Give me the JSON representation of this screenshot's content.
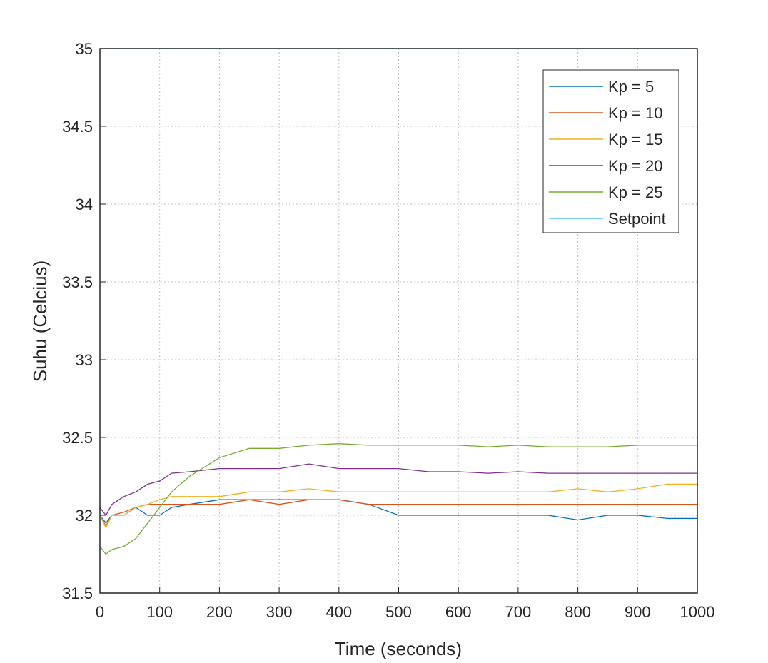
{
  "chart_data": {
    "type": "line",
    "title": "",
    "xlabel": "Time (seconds)",
    "ylabel": "Suhu (Celcius)",
    "xlim": [
      0,
      1000
    ],
    "ylim": [
      31.5,
      35
    ],
    "xticks": [
      "0",
      "100",
      "200",
      "300",
      "400",
      "500",
      "600",
      "700",
      "800",
      "900",
      "1000"
    ],
    "yticks": [
      "31.5",
      "32",
      "32.5",
      "33",
      "33.5",
      "34",
      "34.5",
      "35"
    ],
    "grid": true,
    "legend_position": "top-right",
    "series": [
      {
        "name": "Kp = 5",
        "color": "#0072bd",
        "x": [
          0,
          10,
          20,
          40,
          60,
          80,
          100,
          120,
          150,
          200,
          250,
          300,
          350,
          400,
          450,
          500,
          550,
          600,
          650,
          700,
          750,
          800,
          850,
          900,
          950,
          1000
        ],
        "y": [
          32.0,
          31.95,
          32.0,
          32.0,
          32.05,
          32.0,
          32.0,
          32.05,
          32.07,
          32.1,
          32.1,
          32.1,
          32.1,
          32.1,
          32.07,
          32.0,
          32.0,
          32.0,
          32.0,
          32.0,
          32.0,
          31.97,
          32.0,
          32.0,
          31.98,
          31.98
        ]
      },
      {
        "name": "Kp = 10",
        "color": "#d95319",
        "x": [
          0,
          10,
          20,
          40,
          60,
          80,
          100,
          120,
          150,
          200,
          250,
          300,
          350,
          400,
          450,
          500,
          550,
          600,
          650,
          700,
          750,
          800,
          850,
          900,
          950,
          1000
        ],
        "y": [
          32.0,
          31.93,
          32.0,
          32.02,
          32.05,
          32.07,
          32.07,
          32.07,
          32.07,
          32.07,
          32.1,
          32.07,
          32.1,
          32.1,
          32.07,
          32.07,
          32.07,
          32.07,
          32.07,
          32.07,
          32.07,
          32.07,
          32.07,
          32.07,
          32.07,
          32.07
        ]
      },
      {
        "name": "Kp = 15",
        "color": "#edb120",
        "x": [
          0,
          10,
          20,
          40,
          60,
          80,
          100,
          120,
          150,
          200,
          250,
          300,
          350,
          400,
          450,
          500,
          550,
          600,
          650,
          700,
          750,
          800,
          850,
          900,
          950,
          1000
        ],
        "y": [
          32.0,
          31.92,
          32.0,
          32.0,
          32.05,
          32.07,
          32.1,
          32.12,
          32.12,
          32.12,
          32.15,
          32.15,
          32.17,
          32.15,
          32.15,
          32.15,
          32.15,
          32.15,
          32.15,
          32.15,
          32.15,
          32.17,
          32.15,
          32.17,
          32.2,
          32.2
        ]
      },
      {
        "name": "Kp = 20",
        "color": "#7e2f8e",
        "x": [
          0,
          10,
          20,
          40,
          60,
          80,
          100,
          120,
          150,
          200,
          250,
          300,
          350,
          400,
          450,
          500,
          550,
          600,
          650,
          700,
          750,
          800,
          850,
          900,
          950,
          1000
        ],
        "y": [
          32.05,
          32.0,
          32.07,
          32.12,
          32.15,
          32.2,
          32.22,
          32.27,
          32.28,
          32.3,
          32.3,
          32.3,
          32.33,
          32.3,
          32.3,
          32.3,
          32.28,
          32.28,
          32.27,
          32.28,
          32.27,
          32.27,
          32.27,
          32.27,
          32.27,
          32.27
        ]
      },
      {
        "name": "Kp = 25",
        "color": "#77ac30",
        "x": [
          0,
          10,
          20,
          40,
          60,
          80,
          100,
          120,
          150,
          200,
          250,
          300,
          350,
          400,
          450,
          500,
          550,
          600,
          650,
          700,
          750,
          800,
          850,
          900,
          950,
          1000
        ],
        "y": [
          31.8,
          31.75,
          31.78,
          31.8,
          31.85,
          31.95,
          32.05,
          32.15,
          32.25,
          32.37,
          32.43,
          32.43,
          32.45,
          32.46,
          32.45,
          32.45,
          32.45,
          32.45,
          32.44,
          32.45,
          32.44,
          32.44,
          32.44,
          32.45,
          32.45,
          32.45
        ]
      },
      {
        "name": "Setpoint",
        "color": "#4dbeee",
        "x": [
          0,
          1000
        ],
        "y": [
          35,
          35
        ]
      }
    ]
  }
}
